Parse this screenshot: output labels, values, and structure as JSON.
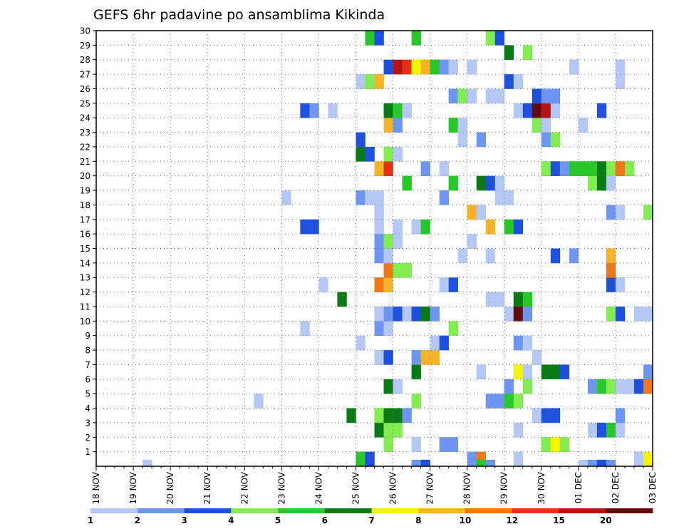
{
  "chart_data": {
    "type": "heatmap",
    "title": "GEFS 6hr padavine po ansamblima Kikinda",
    "xlabel": "",
    "ylabel": "",
    "x_ticks": [
      "18 NOV",
      "19 NOV",
      "20 NOV",
      "21 NOV",
      "22 NOV",
      "23 NOV",
      "24 NOV",
      "25 NOV",
      "26 NOV",
      "27 NOV",
      "28 NOV",
      "29 NOV",
      "30 NOV",
      "01 DEC",
      "02 DEC",
      "03 DEC"
    ],
    "y_ticks": [
      "1",
      "2",
      "3",
      "4",
      "5",
      "6",
      "7",
      "8",
      "9",
      "10",
      "11",
      "12",
      "13",
      "14",
      "15",
      "16",
      "17",
      "18",
      "19",
      "20",
      "21",
      "22",
      "23",
      "24",
      "25",
      "26",
      "27",
      "28",
      "29",
      "30"
    ],
    "x_range_steps": [
      0,
      60
    ],
    "steps_per_day": 4,
    "grid": true,
    "legend": {
      "position": "bottom",
      "labels": [
        "1",
        "2",
        "3",
        "4",
        "5",
        "6",
        "7",
        "8",
        "10",
        "12",
        "15",
        "20"
      ],
      "colors": [
        "#b4c8f5",
        "#6e96f0",
        "#1e50dc",
        "#82ec50",
        "#28c828",
        "#0a7a14",
        "#f5f500",
        "#f5b428",
        "#f07814",
        "#e63214",
        "#b41414",
        "#640a0a"
      ]
    },
    "levels": [
      1,
      2,
      3,
      4,
      5,
      6,
      7,
      8,
      10,
      12,
      15,
      20
    ],
    "units_note": "",
    "cells": [
      {
        "m": 1,
        "s": [
          [
            28,
            5
          ],
          [
            29,
            3
          ],
          [
            40,
            2
          ],
          [
            41,
            9
          ],
          [
            45,
            1
          ],
          [
            58,
            1
          ],
          [
            59,
            7
          ]
        ]
      },
      {
        "m": 2,
        "s": [
          [
            31,
            4
          ],
          [
            34,
            1
          ],
          [
            37,
            2
          ],
          [
            38,
            2
          ],
          [
            48,
            4
          ],
          [
            49,
            7
          ],
          [
            50,
            4
          ]
        ]
      },
      {
        "m": 3,
        "s": [
          [
            30,
            6
          ],
          [
            31,
            4
          ],
          [
            32,
            4
          ],
          [
            45,
            1
          ],
          [
            53,
            1
          ],
          [
            54,
            3
          ],
          [
            55,
            5
          ],
          [
            56,
            1
          ]
        ]
      },
      {
        "m": 4,
        "s": [
          [
            27,
            6
          ],
          [
            30,
            4
          ],
          [
            31,
            6
          ],
          [
            32,
            6
          ],
          [
            33,
            2
          ],
          [
            47,
            1
          ],
          [
            48,
            3
          ],
          [
            49,
            3
          ],
          [
            56,
            2
          ]
        ]
      },
      {
        "m": 5,
        "s": [
          [
            17,
            1
          ],
          [
            34,
            4
          ],
          [
            42,
            2
          ],
          [
            43,
            2
          ],
          [
            44,
            5
          ],
          [
            45,
            4
          ]
        ]
      },
      {
        "m": 6,
        "s": [
          [
            31,
            6
          ],
          [
            32,
            1
          ],
          [
            44,
            2
          ],
          [
            46,
            4
          ],
          [
            53,
            2
          ],
          [
            54,
            5
          ],
          [
            55,
            4
          ],
          [
            56,
            1
          ],
          [
            57,
            1
          ],
          [
            58,
            3
          ],
          [
            59,
            9
          ]
        ]
      },
      {
        "m": 7,
        "s": [
          [
            34,
            6
          ],
          [
            41,
            1
          ],
          [
            45,
            7
          ],
          [
            46,
            1
          ],
          [
            48,
            6
          ],
          [
            49,
            6
          ],
          [
            50,
            3
          ],
          [
            59,
            2
          ]
        ]
      },
      {
        "m": 8,
        "s": [
          [
            30,
            1
          ],
          [
            31,
            3
          ],
          [
            34,
            2
          ],
          [
            35,
            8
          ],
          [
            36,
            8
          ],
          [
            47,
            1
          ]
        ]
      },
      {
        "m": 9,
        "s": [
          [
            28,
            1
          ],
          [
            36,
            1
          ],
          [
            37,
            3
          ],
          [
            45,
            2
          ],
          [
            46,
            1
          ]
        ]
      },
      {
        "m": 10,
        "s": [
          [
            22,
            1
          ],
          [
            30,
            2
          ],
          [
            31,
            1
          ],
          [
            38,
            4
          ]
        ]
      },
      {
        "m": 11,
        "s": [
          [
            30,
            1
          ],
          [
            31,
            2
          ],
          [
            32,
            3
          ],
          [
            33,
            1
          ],
          [
            34,
            3
          ],
          [
            35,
            6
          ],
          [
            36,
            2
          ],
          [
            44,
            1
          ],
          [
            45,
            12
          ],
          [
            46,
            2
          ],
          [
            55,
            4
          ],
          [
            56,
            3
          ],
          [
            58,
            1
          ],
          [
            59,
            1
          ]
        ]
      },
      {
        "m": 12,
        "s": [
          [
            26,
            6
          ],
          [
            42,
            1
          ],
          [
            43,
            1
          ],
          [
            45,
            6
          ],
          [
            46,
            5
          ]
        ]
      },
      {
        "m": 13,
        "s": [
          [
            24,
            1
          ],
          [
            30,
            9
          ],
          [
            31,
            8
          ],
          [
            37,
            1
          ],
          [
            38,
            3
          ],
          [
            55,
            3
          ],
          [
            56,
            1
          ]
        ]
      },
      {
        "m": 14,
        "s": [
          [
            31,
            9
          ],
          [
            32,
            4
          ],
          [
            33,
            4
          ],
          [
            55,
            9
          ]
        ]
      },
      {
        "m": 15,
        "s": [
          [
            30,
            2
          ],
          [
            31,
            1
          ],
          [
            39,
            1
          ],
          [
            42,
            1
          ],
          [
            49,
            3
          ],
          [
            51,
            2
          ],
          [
            55,
            8
          ]
        ]
      },
      {
        "m": 16,
        "s": [
          [
            30,
            2
          ],
          [
            31,
            4
          ],
          [
            32,
            1
          ],
          [
            40,
            1
          ]
        ]
      },
      {
        "m": 17,
        "s": [
          [
            22,
            3
          ],
          [
            23,
            3
          ],
          [
            30,
            1
          ],
          [
            32,
            1
          ],
          [
            34,
            1
          ],
          [
            35,
            5
          ],
          [
            42,
            8
          ],
          [
            44,
            5
          ],
          [
            45,
            3
          ]
        ]
      },
      {
        "m": 18,
        "s": [
          [
            30,
            1
          ],
          [
            40,
            8
          ],
          [
            41,
            1
          ],
          [
            55,
            2
          ],
          [
            56,
            1
          ],
          [
            59,
            4
          ]
        ]
      },
      {
        "m": 19,
        "s": [
          [
            20,
            1
          ],
          [
            28,
            2
          ],
          [
            29,
            1
          ],
          [
            30,
            1
          ],
          [
            37,
            2
          ],
          [
            43,
            1
          ],
          [
            44,
            1
          ]
        ]
      },
      {
        "m": 20,
        "s": [
          [
            33,
            5
          ],
          [
            38,
            5
          ],
          [
            41,
            6
          ],
          [
            42,
            3
          ],
          [
            43,
            1
          ],
          [
            53,
            4
          ],
          [
            54,
            6
          ],
          [
            55,
            1
          ]
        ]
      },
      {
        "m": 21,
        "s": [
          [
            30,
            8
          ],
          [
            31,
            10
          ],
          [
            35,
            2
          ],
          [
            37,
            1
          ],
          [
            48,
            4
          ],
          [
            49,
            3
          ],
          [
            50,
            2
          ],
          [
            51,
            5
          ],
          [
            52,
            5
          ],
          [
            53,
            5
          ],
          [
            54,
            6
          ],
          [
            55,
            4
          ],
          [
            56,
            9
          ],
          [
            57,
            4
          ]
        ]
      },
      {
        "m": 22,
        "s": [
          [
            28,
            6
          ],
          [
            29,
            3
          ],
          [
            31,
            4
          ],
          [
            32,
            1
          ]
        ]
      },
      {
        "m": 23,
        "s": [
          [
            28,
            3
          ],
          [
            39,
            1
          ],
          [
            41,
            2
          ],
          [
            48,
            2
          ],
          [
            49,
            4
          ]
        ]
      },
      {
        "m": 24,
        "s": [
          [
            31,
            8
          ],
          [
            32,
            2
          ],
          [
            38,
            5
          ],
          [
            39,
            1
          ],
          [
            47,
            4
          ],
          [
            48,
            1
          ],
          [
            52,
            1
          ]
        ]
      },
      {
        "m": 25,
        "s": [
          [
            22,
            3
          ],
          [
            23,
            2
          ],
          [
            25,
            1
          ],
          [
            31,
            6
          ],
          [
            32,
            5
          ],
          [
            33,
            1
          ],
          [
            45,
            1
          ],
          [
            46,
            3
          ],
          [
            47,
            12
          ],
          [
            48,
            11
          ],
          [
            49,
            1
          ],
          [
            54,
            3
          ]
        ]
      },
      {
        "m": 26,
        "s": [
          [
            38,
            2
          ],
          [
            39,
            4
          ],
          [
            40,
            1
          ],
          [
            42,
            1
          ],
          [
            43,
            1
          ],
          [
            47,
            3
          ],
          [
            48,
            2
          ],
          [
            49,
            2
          ]
        ]
      },
      {
        "m": 27,
        "s": [
          [
            28,
            1
          ],
          [
            29,
            4
          ],
          [
            30,
            8
          ],
          [
            44,
            3
          ],
          [
            45,
            1
          ],
          [
            56,
            1
          ]
        ]
      },
      {
        "m": 28,
        "s": [
          [
            31,
            3
          ],
          [
            32,
            11
          ],
          [
            33,
            10
          ],
          [
            34,
            7
          ],
          [
            35,
            8
          ],
          [
            36,
            5
          ],
          [
            37,
            2
          ],
          [
            38,
            1
          ],
          [
            40,
            1
          ],
          [
            51,
            1
          ],
          [
            56,
            1
          ]
        ]
      },
      {
        "m": 29,
        "s": [
          [
            44,
            6
          ],
          [
            46,
            4
          ]
        ]
      },
      {
        "m": 30,
        "s": [
          [
            29,
            5
          ],
          [
            30,
            3
          ],
          [
            34,
            5
          ],
          [
            42,
            4
          ],
          [
            43,
            3
          ]
        ]
      },
      {
        "m": 0,
        "s": [
          [
            5,
            1
          ],
          [
            34,
            2
          ],
          [
            35,
            3
          ],
          [
            41,
            5
          ],
          [
            42,
            2
          ],
          [
            52,
            1
          ],
          [
            53,
            2
          ],
          [
            54,
            3
          ],
          [
            55,
            2
          ]
        ]
      }
    ]
  }
}
